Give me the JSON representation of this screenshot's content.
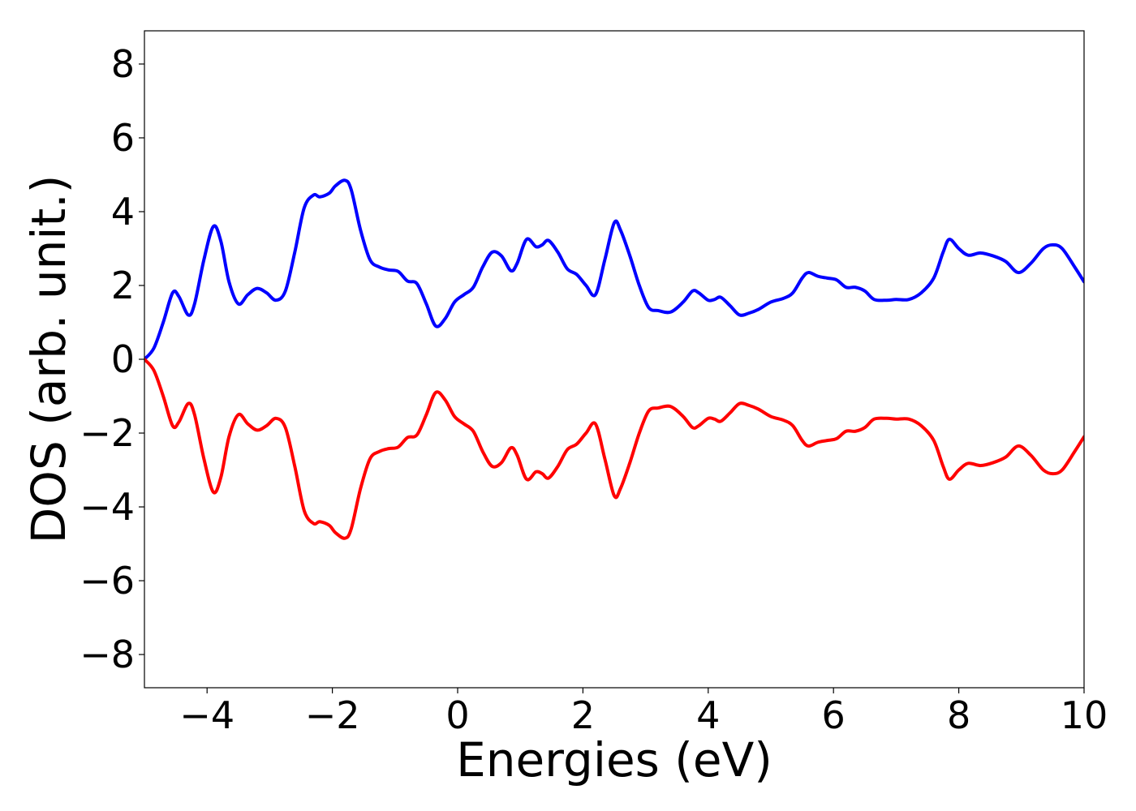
{
  "chart_data": {
    "type": "line",
    "title": "",
    "xlabel": "Energies (eV)",
    "ylabel": "DOS (arb. unit.)",
    "xlim": [
      -5,
      10
    ],
    "ylim": [
      -8.9,
      8.9
    ],
    "grid": false,
    "legend": "none",
    "x_ticks": [
      -4,
      -2,
      0,
      2,
      4,
      6,
      8,
      10
    ],
    "x_tick_labels": [
      "−4",
      "−2",
      "0",
      "2",
      "4",
      "6",
      "8",
      "10"
    ],
    "y_ticks": [
      8,
      6,
      4,
      2,
      0,
      -2,
      -4,
      -6,
      -8
    ],
    "y_tick_labels": [
      "8",
      "6",
      "4",
      "2",
      "0",
      "−2",
      "−4",
      "−6",
      "−8"
    ],
    "series": [
      {
        "color": "#0000ff",
        "points": [
          [
            -5.0,
            0.0
          ],
          [
            -4.85,
            0.3
          ],
          [
            -4.7,
            1.0
          ],
          [
            -4.55,
            1.8
          ],
          [
            -4.45,
            1.7
          ],
          [
            -4.3,
            1.2
          ],
          [
            -4.2,
            1.5
          ],
          [
            -4.05,
            2.7
          ],
          [
            -3.9,
            3.6
          ],
          [
            -3.78,
            3.2
          ],
          [
            -3.65,
            2.1
          ],
          [
            -3.5,
            1.5
          ],
          [
            -3.35,
            1.75
          ],
          [
            -3.2,
            1.92
          ],
          [
            -3.05,
            1.8
          ],
          [
            -2.9,
            1.6
          ],
          [
            -2.75,
            1.85
          ],
          [
            -2.6,
            2.9
          ],
          [
            -2.45,
            4.1
          ],
          [
            -2.3,
            4.45
          ],
          [
            -2.2,
            4.4
          ],
          [
            -2.05,
            4.5
          ],
          [
            -1.95,
            4.7
          ],
          [
            -1.8,
            4.85
          ],
          [
            -1.7,
            4.6
          ],
          [
            -1.55,
            3.5
          ],
          [
            -1.4,
            2.7
          ],
          [
            -1.25,
            2.5
          ],
          [
            -1.1,
            2.42
          ],
          [
            -0.95,
            2.38
          ],
          [
            -0.8,
            2.12
          ],
          [
            -0.65,
            2.05
          ],
          [
            -0.5,
            1.5
          ],
          [
            -0.35,
            0.9
          ],
          [
            -0.2,
            1.1
          ],
          [
            -0.05,
            1.55
          ],
          [
            0.1,
            1.75
          ],
          [
            0.25,
            1.95
          ],
          [
            0.4,
            2.5
          ],
          [
            0.55,
            2.9
          ],
          [
            0.7,
            2.8
          ],
          [
            0.85,
            2.4
          ],
          [
            0.95,
            2.6
          ],
          [
            1.1,
            3.25
          ],
          [
            1.25,
            3.05
          ],
          [
            1.35,
            3.1
          ],
          [
            1.45,
            3.22
          ],
          [
            1.6,
            2.9
          ],
          [
            1.75,
            2.45
          ],
          [
            1.9,
            2.3
          ],
          [
            2.05,
            2.0
          ],
          [
            2.2,
            1.75
          ],
          [
            2.35,
            2.7
          ],
          [
            2.5,
            3.7
          ],
          [
            2.6,
            3.5
          ],
          [
            2.75,
            2.8
          ],
          [
            2.9,
            2.0
          ],
          [
            3.05,
            1.4
          ],
          [
            3.2,
            1.32
          ],
          [
            3.4,
            1.28
          ],
          [
            3.6,
            1.55
          ],
          [
            3.75,
            1.85
          ],
          [
            3.85,
            1.8
          ],
          [
            4.0,
            1.6
          ],
          [
            4.1,
            1.62
          ],
          [
            4.2,
            1.68
          ],
          [
            4.35,
            1.45
          ],
          [
            4.5,
            1.2
          ],
          [
            4.65,
            1.25
          ],
          [
            4.8,
            1.35
          ],
          [
            5.0,
            1.55
          ],
          [
            5.2,
            1.65
          ],
          [
            5.35,
            1.8
          ],
          [
            5.5,
            2.2
          ],
          [
            5.6,
            2.35
          ],
          [
            5.75,
            2.25
          ],
          [
            5.9,
            2.2
          ],
          [
            6.05,
            2.15
          ],
          [
            6.2,
            1.95
          ],
          [
            6.35,
            1.95
          ],
          [
            6.5,
            1.85
          ],
          [
            6.65,
            1.62
          ],
          [
            6.85,
            1.6
          ],
          [
            7.0,
            1.62
          ],
          [
            7.2,
            1.62
          ],
          [
            7.4,
            1.8
          ],
          [
            7.6,
            2.2
          ],
          [
            7.75,
            2.9
          ],
          [
            7.85,
            3.25
          ],
          [
            8.0,
            3.0
          ],
          [
            8.15,
            2.82
          ],
          [
            8.35,
            2.88
          ],
          [
            8.55,
            2.8
          ],
          [
            8.75,
            2.65
          ],
          [
            8.95,
            2.35
          ],
          [
            9.15,
            2.6
          ],
          [
            9.35,
            3.0
          ],
          [
            9.5,
            3.1
          ],
          [
            9.65,
            3.0
          ],
          [
            9.85,
            2.5
          ],
          [
            10.0,
            2.1
          ]
        ]
      },
      {
        "color": "#ff0000",
        "points": [
          [
            -5.0,
            0.0
          ],
          [
            -4.85,
            -0.3
          ],
          [
            -4.7,
            -1.0
          ],
          [
            -4.55,
            -1.8
          ],
          [
            -4.45,
            -1.7
          ],
          [
            -4.3,
            -1.2
          ],
          [
            -4.2,
            -1.5
          ],
          [
            -4.05,
            -2.7
          ],
          [
            -3.9,
            -3.6
          ],
          [
            -3.78,
            -3.2
          ],
          [
            -3.65,
            -2.1
          ],
          [
            -3.5,
            -1.5
          ],
          [
            -3.35,
            -1.75
          ],
          [
            -3.2,
            -1.92
          ],
          [
            -3.05,
            -1.8
          ],
          [
            -2.9,
            -1.6
          ],
          [
            -2.75,
            -1.85
          ],
          [
            -2.6,
            -2.9
          ],
          [
            -2.45,
            -4.1
          ],
          [
            -2.3,
            -4.45
          ],
          [
            -2.2,
            -4.4
          ],
          [
            -2.05,
            -4.5
          ],
          [
            -1.95,
            -4.7
          ],
          [
            -1.8,
            -4.85
          ],
          [
            -1.7,
            -4.6
          ],
          [
            -1.55,
            -3.5
          ],
          [
            -1.4,
            -2.7
          ],
          [
            -1.25,
            -2.5
          ],
          [
            -1.1,
            -2.42
          ],
          [
            -0.95,
            -2.38
          ],
          [
            -0.8,
            -2.12
          ],
          [
            -0.65,
            -2.05
          ],
          [
            -0.5,
            -1.5
          ],
          [
            -0.35,
            -0.9
          ],
          [
            -0.2,
            -1.1
          ],
          [
            -0.05,
            -1.55
          ],
          [
            0.1,
            -1.75
          ],
          [
            0.25,
            -1.95
          ],
          [
            0.4,
            -2.5
          ],
          [
            0.55,
            -2.9
          ],
          [
            0.7,
            -2.8
          ],
          [
            0.85,
            -2.4
          ],
          [
            0.95,
            -2.6
          ],
          [
            1.1,
            -3.25
          ],
          [
            1.25,
            -3.05
          ],
          [
            1.35,
            -3.1
          ],
          [
            1.45,
            -3.22
          ],
          [
            1.6,
            -2.9
          ],
          [
            1.75,
            -2.45
          ],
          [
            1.9,
            -2.3
          ],
          [
            2.05,
            -2.0
          ],
          [
            2.2,
            -1.75
          ],
          [
            2.35,
            -2.7
          ],
          [
            2.5,
            -3.7
          ],
          [
            2.6,
            -3.5
          ],
          [
            2.75,
            -2.8
          ],
          [
            2.9,
            -2.0
          ],
          [
            3.05,
            -1.4
          ],
          [
            3.2,
            -1.32
          ],
          [
            3.4,
            -1.28
          ],
          [
            3.6,
            -1.55
          ],
          [
            3.75,
            -1.85
          ],
          [
            3.85,
            -1.8
          ],
          [
            4.0,
            -1.6
          ],
          [
            4.1,
            -1.62
          ],
          [
            4.2,
            -1.68
          ],
          [
            4.35,
            -1.45
          ],
          [
            4.5,
            -1.2
          ],
          [
            4.65,
            -1.25
          ],
          [
            4.8,
            -1.35
          ],
          [
            5.0,
            -1.55
          ],
          [
            5.2,
            -1.65
          ],
          [
            5.35,
            -1.8
          ],
          [
            5.5,
            -2.2
          ],
          [
            5.6,
            -2.35
          ],
          [
            5.75,
            -2.25
          ],
          [
            5.9,
            -2.2
          ],
          [
            6.05,
            -2.15
          ],
          [
            6.2,
            -1.95
          ],
          [
            6.35,
            -1.95
          ],
          [
            6.5,
            -1.85
          ],
          [
            6.65,
            -1.62
          ],
          [
            6.85,
            -1.6
          ],
          [
            7.0,
            -1.62
          ],
          [
            7.2,
            -1.62
          ],
          [
            7.4,
            -1.8
          ],
          [
            7.6,
            -2.2
          ],
          [
            7.75,
            -2.9
          ],
          [
            7.85,
            -3.25
          ],
          [
            8.0,
            -3.0
          ],
          [
            8.15,
            -2.82
          ],
          [
            8.35,
            -2.88
          ],
          [
            8.55,
            -2.8
          ],
          [
            8.75,
            -2.65
          ],
          [
            8.95,
            -2.35
          ],
          [
            9.15,
            -2.6
          ],
          [
            9.35,
            -3.0
          ],
          [
            9.5,
            -3.1
          ],
          [
            9.65,
            -3.0
          ],
          [
            9.85,
            -2.5
          ],
          [
            10.0,
            -2.1
          ]
        ]
      }
    ]
  }
}
